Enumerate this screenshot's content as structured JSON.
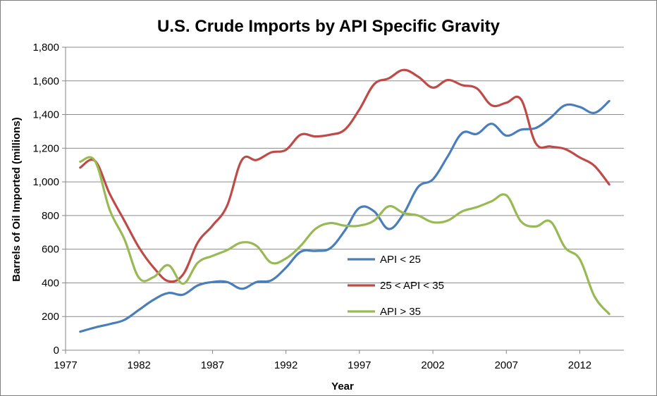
{
  "chart_data": {
    "type": "line",
    "title": "U.S. Crude Imports by API Specific Gravity",
    "xlabel": "Year",
    "ylabel": "Barrels of Oil Imported (millions)",
    "xlim": [
      1977,
      2015
    ],
    "ylim": [
      0,
      1800
    ],
    "xticks": [
      "1977",
      "1982",
      "1987",
      "1992",
      "1997",
      "2002",
      "2007",
      "2012"
    ],
    "yticks": [
      "0",
      "200",
      "400",
      "600",
      "800",
      "1,000",
      "1,200",
      "1,400",
      "1,600",
      "1,800"
    ],
    "grid": "horizontal",
    "legend_position": "center-right",
    "series": [
      {
        "name": "API < 25",
        "color": "#4a7ebb",
        "x": [
          1978,
          1979,
          1980,
          1981,
          1982,
          1983,
          1984,
          1985,
          1986,
          1987,
          1988,
          1989,
          1990,
          1991,
          1992,
          1993,
          1994,
          1995,
          1996,
          1997,
          1998,
          1999,
          2000,
          2001,
          2002,
          2003,
          2004,
          2005,
          2006,
          2007,
          2008,
          2009,
          2010,
          2011,
          2012,
          2013,
          2014
        ],
        "values": [
          110,
          135,
          155,
          180,
          240,
          300,
          340,
          330,
          385,
          405,
          405,
          365,
          405,
          415,
          490,
          585,
          590,
          605,
          710,
          845,
          825,
          720,
          810,
          970,
          1015,
          1150,
          1290,
          1285,
          1345,
          1275,
          1310,
          1320,
          1380,
          1455,
          1445,
          1410,
          1480
        ]
      },
      {
        "name": "25 < API < 35",
        "color": "#be4b48",
        "x": [
          1978,
          1979,
          1980,
          1981,
          1982,
          1983,
          1984,
          1985,
          1986,
          1987,
          1988,
          1989,
          1990,
          1991,
          1992,
          1993,
          1994,
          1995,
          1996,
          1997,
          1998,
          1999,
          2000,
          2001,
          2002,
          2003,
          2004,
          2005,
          2006,
          2007,
          2008,
          2009,
          2010,
          2011,
          2012,
          2013,
          2014
        ],
        "values": [
          1085,
          1125,
          930,
          770,
          610,
          490,
          410,
          450,
          640,
          740,
          860,
          1130,
          1130,
          1175,
          1190,
          1280,
          1270,
          1280,
          1310,
          1430,
          1580,
          1615,
          1665,
          1625,
          1560,
          1605,
          1575,
          1555,
          1455,
          1470,
          1490,
          1230,
          1210,
          1195,
          1145,
          1095,
          985
        ]
      },
      {
        "name": "API > 35",
        "color": "#98b954",
        "x": [
          1978,
          1979,
          1980,
          1981,
          1982,
          1983,
          1984,
          1985,
          1986,
          1987,
          1988,
          1989,
          1990,
          1991,
          1992,
          1993,
          1994,
          1995,
          1996,
          1997,
          1998,
          1999,
          2000,
          2001,
          2002,
          2003,
          2004,
          2005,
          2006,
          2007,
          2008,
          2009,
          2010,
          2011,
          2012,
          2013,
          2014
        ],
        "values": [
          1120,
          1125,
          835,
          660,
          430,
          435,
          505,
          395,
          520,
          560,
          595,
          640,
          620,
          520,
          545,
          620,
          720,
          755,
          740,
          740,
          770,
          855,
          815,
          800,
          760,
          770,
          825,
          850,
          885,
          920,
          765,
          735,
          765,
          610,
          540,
          320,
          215
        ]
      }
    ]
  }
}
